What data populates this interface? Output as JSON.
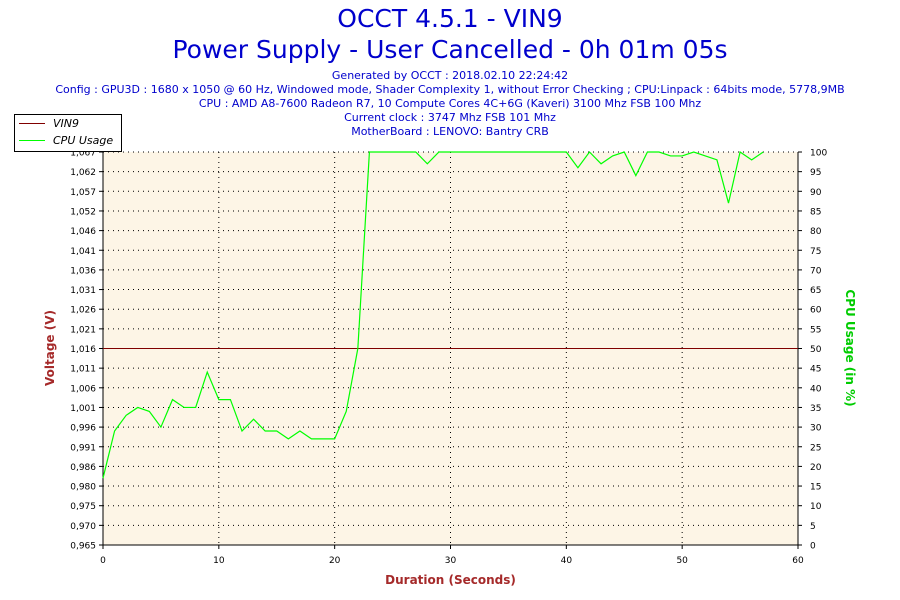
{
  "header": {
    "title": "OCCT 4.5.1 - VIN9",
    "subtitle": "Power Supply - User Cancelled - 0h 01m 05s",
    "info_lines": [
      "Generated by OCCT : 2018.02.10 22:24:42",
      "Config : GPU3D : 1680 x 1050 @ 60 Hz, Windowed mode, Shader Complexity 1, without Error Checking ; CPU:Linpack : 64bits mode, 5778,9MB",
      "CPU : AMD A8-7600 Radeon R7, 10 Compute Cores 4C+6G (Kaveri) 3100 Mhz FSB 100 Mhz",
      "Current clock : 3747 Mhz FSB 101 Mhz",
      "MotherBoard : LENOVO: Bantry CRB"
    ]
  },
  "chart_data": {
    "type": "line",
    "xlabel": "Duration (Seconds)",
    "ylabel": "Voltage (V)",
    "y2label": "CPU Usage (in %)",
    "xlim": [
      0,
      60
    ],
    "ylim": [
      0.965,
      1.067
    ],
    "y2lim": [
      0,
      100
    ],
    "x_ticks": [
      "0",
      "10",
      "20",
      "30",
      "40",
      "50",
      "60"
    ],
    "y_ticks": [
      "0,965",
      "0,970",
      "0,975",
      "0,980",
      "0,986",
      "0,991",
      "0,996",
      "1,001",
      "1,006",
      "1,011",
      "1,016",
      "1,021",
      "1,026",
      "1,031",
      "1,036",
      "1,041",
      "1,046",
      "1,052",
      "1,057",
      "1,062",
      "1,067"
    ],
    "y2_ticks": [
      "0",
      "5",
      "10",
      "15",
      "20",
      "25",
      "30",
      "35",
      "40",
      "45",
      "50",
      "55",
      "60",
      "65",
      "70",
      "75",
      "80",
      "85",
      "90",
      "95",
      "100"
    ],
    "grid": true,
    "legend_position": "top-left",
    "colors": {
      "vin9": "#800000",
      "cpu": "#00ff00",
      "voltage_axis": "#a52a2a",
      "cpu_axis": "#00cc00",
      "plot_bg": "#fdf5e6"
    },
    "series": [
      {
        "name": "VIN9",
        "axis": "left",
        "x": [
          0,
          60
        ],
        "values": [
          1.016,
          1.016
        ]
      },
      {
        "name": "CPU Usage",
        "axis": "right",
        "x": [
          0,
          1,
          2,
          3,
          4,
          5,
          6,
          7,
          8,
          9,
          10,
          11,
          12,
          13,
          14,
          15,
          16,
          17,
          18,
          19,
          20,
          21,
          22,
          23,
          24,
          25,
          26,
          27,
          28,
          29,
          30,
          31,
          32,
          33,
          34,
          35,
          36,
          37,
          38,
          39,
          40,
          41,
          42,
          43,
          44,
          45,
          46,
          47,
          48,
          49,
          50,
          51,
          52,
          53,
          54,
          55,
          56,
          57
        ],
        "values": [
          17,
          29,
          33,
          35,
          34,
          30,
          37,
          35,
          35,
          44,
          37,
          37,
          29,
          32,
          29,
          29,
          27,
          29,
          27,
          27,
          27,
          34,
          50,
          100,
          100,
          100,
          100,
          100,
          97,
          100,
          100,
          100,
          100,
          100,
          100,
          100,
          100,
          100,
          100,
          100,
          100,
          96,
          100,
          97,
          99,
          100,
          94,
          100,
          100,
          99,
          99,
          100,
          99,
          98,
          87,
          100,
          98,
          100
        ]
      }
    ]
  }
}
